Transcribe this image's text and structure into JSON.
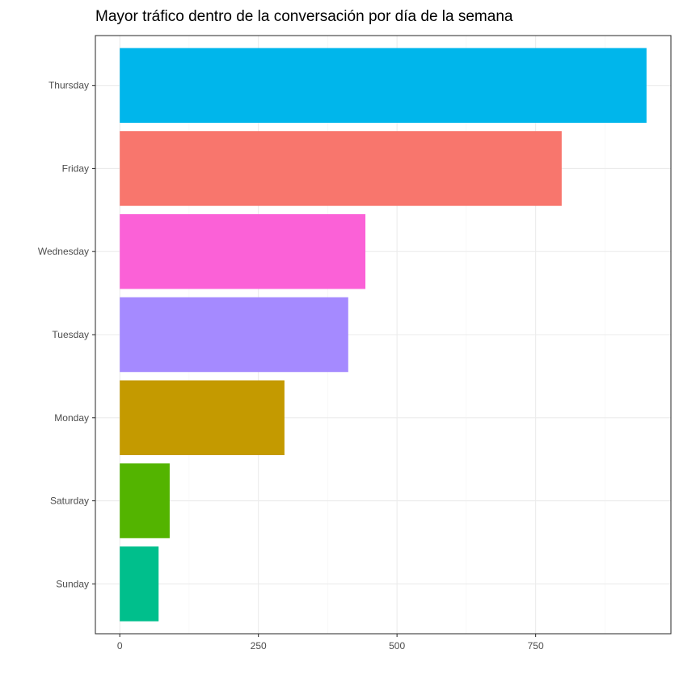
{
  "chart_data": {
    "type": "bar",
    "orientation": "horizontal",
    "title": "Mayor tráfico dentro de la conversación por día de la semana",
    "xlabel": "",
    "ylabel": "",
    "categories": [
      "Sunday",
      "Saturday",
      "Monday",
      "Tuesday",
      "Wednesday",
      "Friday",
      "Thursday"
    ],
    "values": [
      70,
      90,
      297,
      412,
      443,
      797,
      950
    ],
    "colors": [
      "#00BF8C",
      "#53B400",
      "#C49A00",
      "#A58AFF",
      "#FB61D7",
      "#F8766D",
      "#00B6EB"
    ],
    "xlim": [
      -44,
      994
    ],
    "xticks": [
      0,
      250,
      500,
      750
    ],
    "xtick_labels": [
      "0",
      "250",
      "500",
      "750"
    ],
    "grid": true,
    "legend": "none"
  }
}
